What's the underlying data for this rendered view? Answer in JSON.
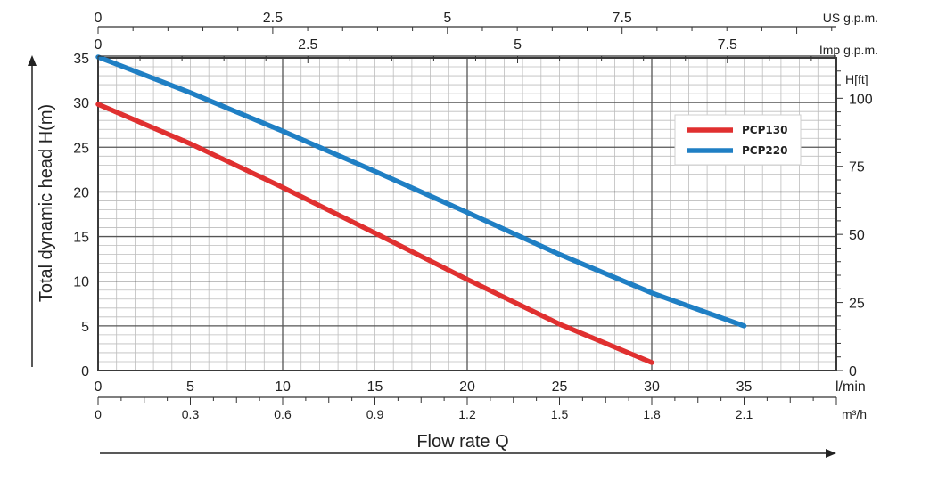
{
  "chart_data": {
    "type": "line",
    "x": [
      0,
      5,
      10,
      15,
      20,
      25,
      30,
      35
    ],
    "xlim": [
      0,
      40
    ],
    "ylim": [
      0,
      35
    ],
    "ylabel": "Total dynamic head H(m)",
    "xlabel": "Flow rate Q",
    "grid": true,
    "legend_position": "top-right",
    "series": [
      {
        "name": "PCP130",
        "color": "#e03030",
        "x": [
          0,
          5,
          10,
          15,
          20,
          25,
          30
        ],
        "y": [
          29.8,
          25.4,
          20.5,
          15.4,
          10.2,
          5.2,
          0.9
        ]
      },
      {
        "name": "PCP220",
        "color": "#1f7fc4",
        "x": [
          0,
          5,
          10,
          15,
          20,
          25,
          30,
          35
        ],
        "y": [
          35.1,
          31.1,
          26.8,
          22.3,
          17.7,
          13.0,
          8.7,
          5.0
        ]
      }
    ],
    "left_axis": {
      "ticks": [
        0,
        5,
        10,
        15,
        20,
        25,
        30,
        35
      ]
    },
    "right_axis": {
      "unit": "H[ft]",
      "ticks": [
        0,
        25,
        50,
        75,
        100
      ],
      "ft_per_m": 3.28084
    },
    "bottom_axis_lmin": {
      "unit": "l/min",
      "ticks": [
        0,
        5,
        10,
        15,
        20,
        25,
        30,
        35
      ]
    },
    "bottom_axis_m3h": {
      "unit": "m³/h",
      "ticks": [
        0,
        0.3,
        0.6,
        0.9,
        1.2,
        1.5,
        1.8,
        2.1
      ],
      "tick_labels": [
        "0",
        "0.3",
        "0.6",
        "0.9",
        "1.2",
        "1.5",
        "1.8",
        "2.1"
      ]
    },
    "top_axis_us": {
      "unit": "US g.p.m.",
      "ticks": [
        0,
        2.5,
        5,
        7.5
      ],
      "tick_labels": [
        "0",
        "2.5",
        "5",
        "7.5"
      ],
      "lpm_per_unit": 3.78541
    },
    "top_axis_imp": {
      "unit": "Imp g.p.m.",
      "ticks": [
        0,
        2.5,
        5,
        7.5
      ],
      "tick_labels": [
        "0",
        "2.5",
        "5",
        "7.5"
      ],
      "lpm_per_unit": 4.54609
    }
  }
}
